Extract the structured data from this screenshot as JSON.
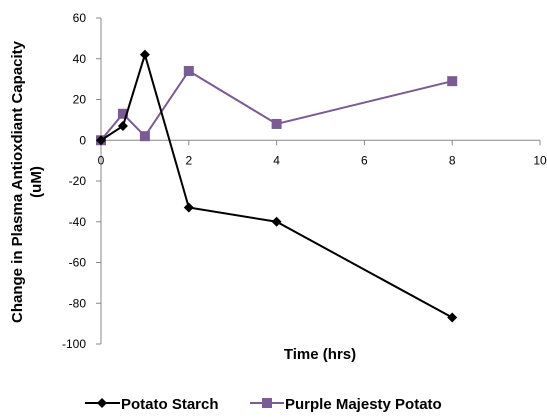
{
  "chart_data": {
    "type": "line",
    "title": "",
    "xlabel": "Time (hrs)",
    "ylabel_lines": [
      "Change in Plasma Antioxdiant Capacity",
      "(uM)"
    ],
    "xlim": [
      0,
      10
    ],
    "ylim": [
      -100,
      60
    ],
    "x_ticks": [
      0,
      2,
      4,
      6,
      8,
      10
    ],
    "y_ticks": [
      60,
      40,
      20,
      0,
      -20,
      -40,
      -60,
      -80,
      -100
    ],
    "grid": false,
    "legend_position": "bottom",
    "series": [
      {
        "name": "Potato Starch",
        "color": "#000000",
        "marker": "diamond",
        "x": [
          0,
          0.5,
          1,
          2,
          4,
          8
        ],
        "y": [
          0,
          7,
          42,
          -33,
          -40,
          -87
        ]
      },
      {
        "name": "Purple Majesty Potato",
        "color": "#7B5B93",
        "marker": "square",
        "x": [
          0,
          0.5,
          1,
          2,
          4,
          8
        ],
        "y": [
          0,
          13,
          2,
          34,
          8,
          29
        ]
      }
    ]
  }
}
